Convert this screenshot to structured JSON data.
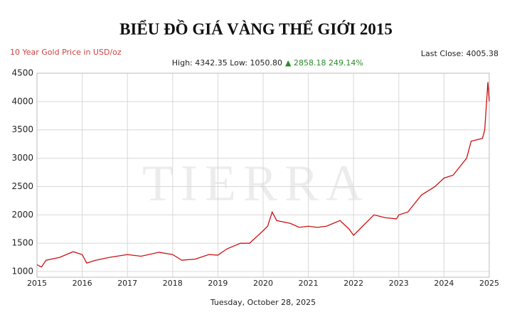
{
  "chart_data": {
    "type": "line",
    "title": "BIỂU ĐỒ GIÁ VÀNG THẾ GIỚI 2015",
    "subtitle": "10 Year Gold Price in USD/oz",
    "last_close": "Last Close: 4005.38",
    "high_low": "High: 4342.35 Low: 1050.80",
    "change": "▲ 2858.18 249.14%",
    "x_label": "Tuesday, October 28, 2025",
    "watermark": "TIERRA",
    "x": [
      2015.0,
      2015.1,
      2015.2,
      2015.5,
      2015.8,
      2016.0,
      2016.1,
      2016.3,
      2016.6,
      2017.0,
      2017.3,
      2017.7,
      2018.0,
      2018.2,
      2018.5,
      2018.8,
      2019.0,
      2019.2,
      2019.5,
      2019.7,
      2020.0,
      2020.1,
      2020.2,
      2020.3,
      2020.6,
      2020.8,
      2021.0,
      2021.2,
      2021.4,
      2021.7,
      2021.9,
      2022.0,
      2022.2,
      2022.45,
      2022.7,
      2022.95,
      2023.0,
      2023.2,
      2023.5,
      2023.8,
      2024.0,
      2024.2,
      2024.5,
      2024.6,
      2024.85,
      2024.9,
      2024.97,
      2025.0
    ],
    "series": [
      {
        "name": "Gold",
        "color": "#cc1111",
        "values": [
          1120,
          1080,
          1200,
          1250,
          1350,
          1300,
          1150,
          1200,
          1250,
          1300,
          1270,
          1340,
          1300,
          1200,
          1220,
          1300,
          1290,
          1400,
          1500,
          1500,
          1720,
          1800,
          2050,
          1900,
          1850,
          1780,
          1800,
          1780,
          1800,
          1900,
          1750,
          1640,
          1800,
          2000,
          1950,
          1930,
          2000,
          2050,
          2350,
          2500,
          2650,
          2700,
          3000,
          3300,
          3350,
          3500,
          4342,
          4005
        ]
      }
    ],
    "xlim": [
      2015,
      2025
    ],
    "xticks": [
      2015,
      2016,
      2017,
      2018,
      2019,
      2020,
      2021,
      2022,
      2023,
      2024,
      2025
    ],
    "ylim": [
      900,
      4500
    ],
    "yticks": [
      1000,
      1500,
      2000,
      2500,
      3000,
      3500,
      4000,
      4500
    ],
    "grid": true
  }
}
